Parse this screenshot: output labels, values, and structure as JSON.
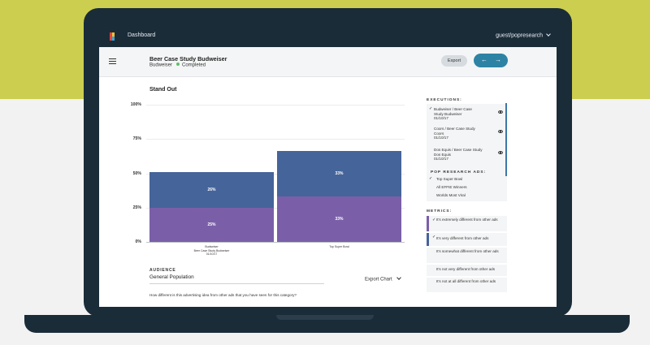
{
  "nav": {
    "title": "Dashboard",
    "user": "guest/popresearch",
    "chevron": "⌄"
  },
  "header": {
    "title": "Beer Case Study Budweiser",
    "brand": "Budweiser",
    "status": "Completed",
    "export_label": "Export",
    "prev_arrow": "←",
    "next_arrow": "→"
  },
  "section_title": "Stand Out",
  "chart_data": {
    "type": "bar",
    "stacked": true,
    "categories": [
      "Budweiser\nBeer Case Study Budweiser\n01/10/17",
      "Top Super Bowl"
    ],
    "series": [
      {
        "name": "It's extremely different from other ads",
        "values": [
          25,
          33
        ],
        "value_labels": [
          "25%",
          "33%"
        ],
        "color": "#7a5fa8"
      },
      {
        "name": "It's very different from other ads",
        "values": [
          26,
          33
        ],
        "value_labels": [
          "26%",
          "33%"
        ],
        "color": "#45649a"
      }
    ],
    "yticks": [
      "100%",
      "75%",
      "50%",
      "25%",
      "0%"
    ],
    "ylim": [
      0,
      100
    ],
    "grid": true
  },
  "audience": {
    "title": "AUDIENCE",
    "value": "General Population",
    "export_chart": "Export Chart",
    "question": "How different is this advertising idea from other ads that you have seen for this category?"
  },
  "executions": {
    "title": "EXECUTIONS:",
    "items": [
      {
        "checked": true,
        "lines": [
          "Budweiser / Beer Case",
          "Study Budweiser",
          "01/10/17"
        ]
      },
      {
        "checked": false,
        "lines": [
          "Coors / Beer Case Study",
          "Coors",
          "01/10/17"
        ]
      },
      {
        "checked": false,
        "lines": [
          "Dos Equis / Beer Case Study",
          "Dos Equis",
          "01/10/17"
        ]
      }
    ]
  },
  "pop_research_ads": {
    "title": "POP RESEARCH ADS:",
    "items": [
      {
        "checked": true,
        "label": "Top Super Bowl"
      },
      {
        "checked": false,
        "label": "All EFFIE Winners"
      },
      {
        "checked": false,
        "label": "Worlds Most Viral"
      }
    ]
  },
  "metrics": {
    "title": "METRICS:",
    "items": [
      {
        "checked": true,
        "label": "It's extremely different from other ads",
        "color": "#7a5fa8"
      },
      {
        "checked": true,
        "label": "It's very different from other ads",
        "color": "#45649a"
      },
      {
        "checked": false,
        "label": "It's somewhat different from other ads",
        "color": ""
      },
      {
        "checked": false,
        "label": "It's not very different from other ads",
        "color": ""
      },
      {
        "checked": false,
        "label": "It's not at all different from other ads",
        "color": ""
      }
    ]
  }
}
